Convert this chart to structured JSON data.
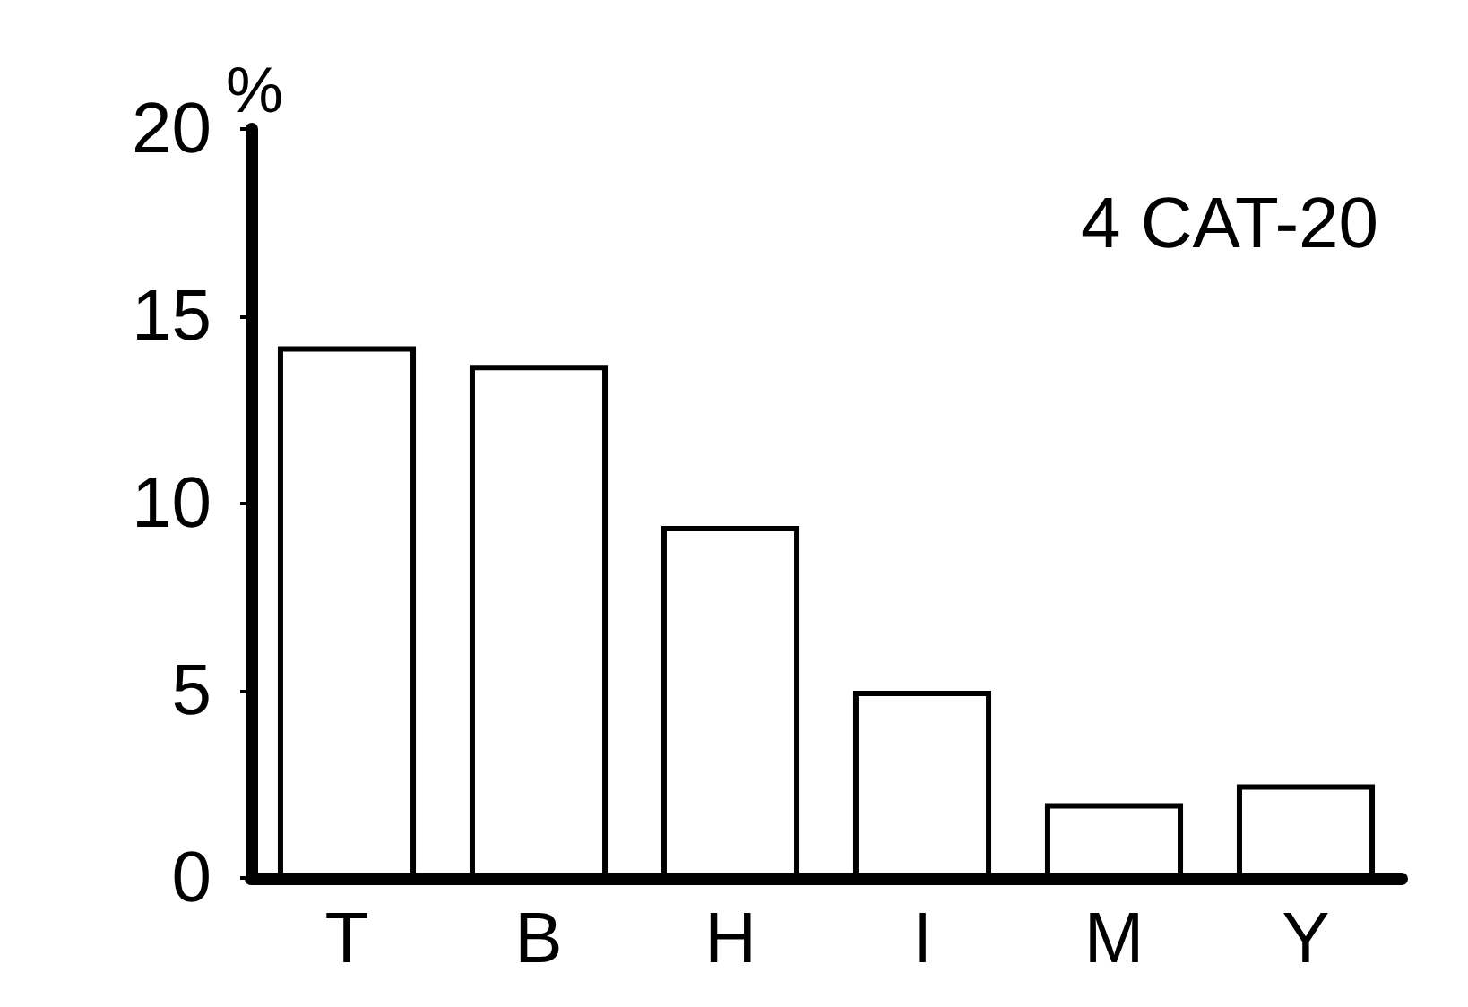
{
  "chart_data": {
    "type": "bar",
    "title": "4 CAT-20",
    "ylabel": "%",
    "categories": [
      "T",
      "B",
      "H",
      "I",
      "M",
      "Y"
    ],
    "values": [
      14.2,
      13.7,
      9.4,
      5.0,
      2.0,
      2.5
    ],
    "color": "#000000",
    "ylim": [
      0,
      20
    ],
    "yticks": [
      0,
      5,
      10,
      15,
      20
    ],
    "grid": false
  }
}
